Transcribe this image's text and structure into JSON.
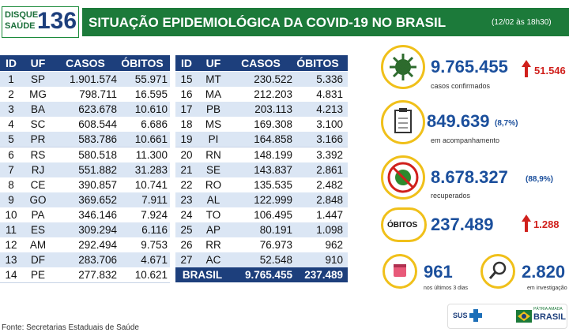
{
  "header": {
    "logo": [
      "DISQUE",
      "SAÚDE",
      "136"
    ],
    "title": "SITUAÇÃO EPIDEMIOLÓGICA DA COVID-19 NO BRASIL",
    "date": "(12/02 às 18h30)"
  },
  "tables": [
    {
      "columns": [
        "ID",
        "UF",
        "CASOS",
        "ÓBITOS"
      ],
      "rows": [
        [
          "1",
          "SP",
          "1.901.574",
          "55.971"
        ],
        [
          "2",
          "MG",
          "798.711",
          "16.595"
        ],
        [
          "3",
          "BA",
          "623.678",
          "10.610"
        ],
        [
          "4",
          "SC",
          "608.544",
          "6.686"
        ],
        [
          "5",
          "PR",
          "583.786",
          "10.661"
        ],
        [
          "6",
          "RS",
          "580.518",
          "11.300"
        ],
        [
          "7",
          "RJ",
          "551.882",
          "31.283"
        ],
        [
          "8",
          "CE",
          "390.857",
          "10.741"
        ],
        [
          "9",
          "GO",
          "369.652",
          "7.911"
        ],
        [
          "10",
          "PA",
          "346.146",
          "7.924"
        ],
        [
          "11",
          "ES",
          "309.294",
          "6.116"
        ],
        [
          "12",
          "AM",
          "292.494",
          "9.753"
        ],
        [
          "13",
          "DF",
          "283.706",
          "4.671"
        ],
        [
          "14",
          "PE",
          "277.832",
          "10.621"
        ]
      ]
    },
    {
      "columns": [
        "ID",
        "UF",
        "CASOS",
        "ÓBITOS"
      ],
      "rows": [
        [
          "15",
          "MT",
          "230.522",
          "5.336"
        ],
        [
          "16",
          "MA",
          "212.203",
          "4.831"
        ],
        [
          "17",
          "PB",
          "203.113",
          "4.213"
        ],
        [
          "18",
          "MS",
          "169.308",
          "3.100"
        ],
        [
          "19",
          "PI",
          "164.858",
          "3.166"
        ],
        [
          "20",
          "RN",
          "148.199",
          "3.392"
        ],
        [
          "21",
          "SE",
          "143.837",
          "2.861"
        ],
        [
          "22",
          "RO",
          "135.535",
          "2.482"
        ],
        [
          "23",
          "AL",
          "122.999",
          "2.848"
        ],
        [
          "24",
          "TO",
          "106.495",
          "1.447"
        ],
        [
          "25",
          "AP",
          "80.191",
          "1.098"
        ],
        [
          "26",
          "RR",
          "76.973",
          "962"
        ],
        [
          "27",
          "AC",
          "52.548",
          "910"
        ]
      ],
      "total": [
        "BRASIL",
        "9.765.455",
        "237.489"
      ]
    }
  ],
  "stats": {
    "confirmed": {
      "value": "9.765.455",
      "label": "casos confirmados",
      "increase": "51.546"
    },
    "monitoring": {
      "value": "849.639",
      "percent": "(8,7%)",
      "label": "em acompanhamento"
    },
    "recovered": {
      "value": "8.678.327",
      "percent": "(88,9%)",
      "label": "recuperados"
    },
    "deaths": {
      "title": "ÓBITOS",
      "value": "237.489",
      "increase": "1.288"
    },
    "recent": {
      "value": "961",
      "label": "nos últimos 3 dias"
    },
    "investigation": {
      "value": "2.820",
      "label": "em investigação"
    }
  },
  "footer": {
    "source": "Fonte: Secretarias Estaduais de Saúde",
    "logos": [
      "SUS",
      "PÁTRIA AMADA",
      "BRASIL"
    ]
  }
}
